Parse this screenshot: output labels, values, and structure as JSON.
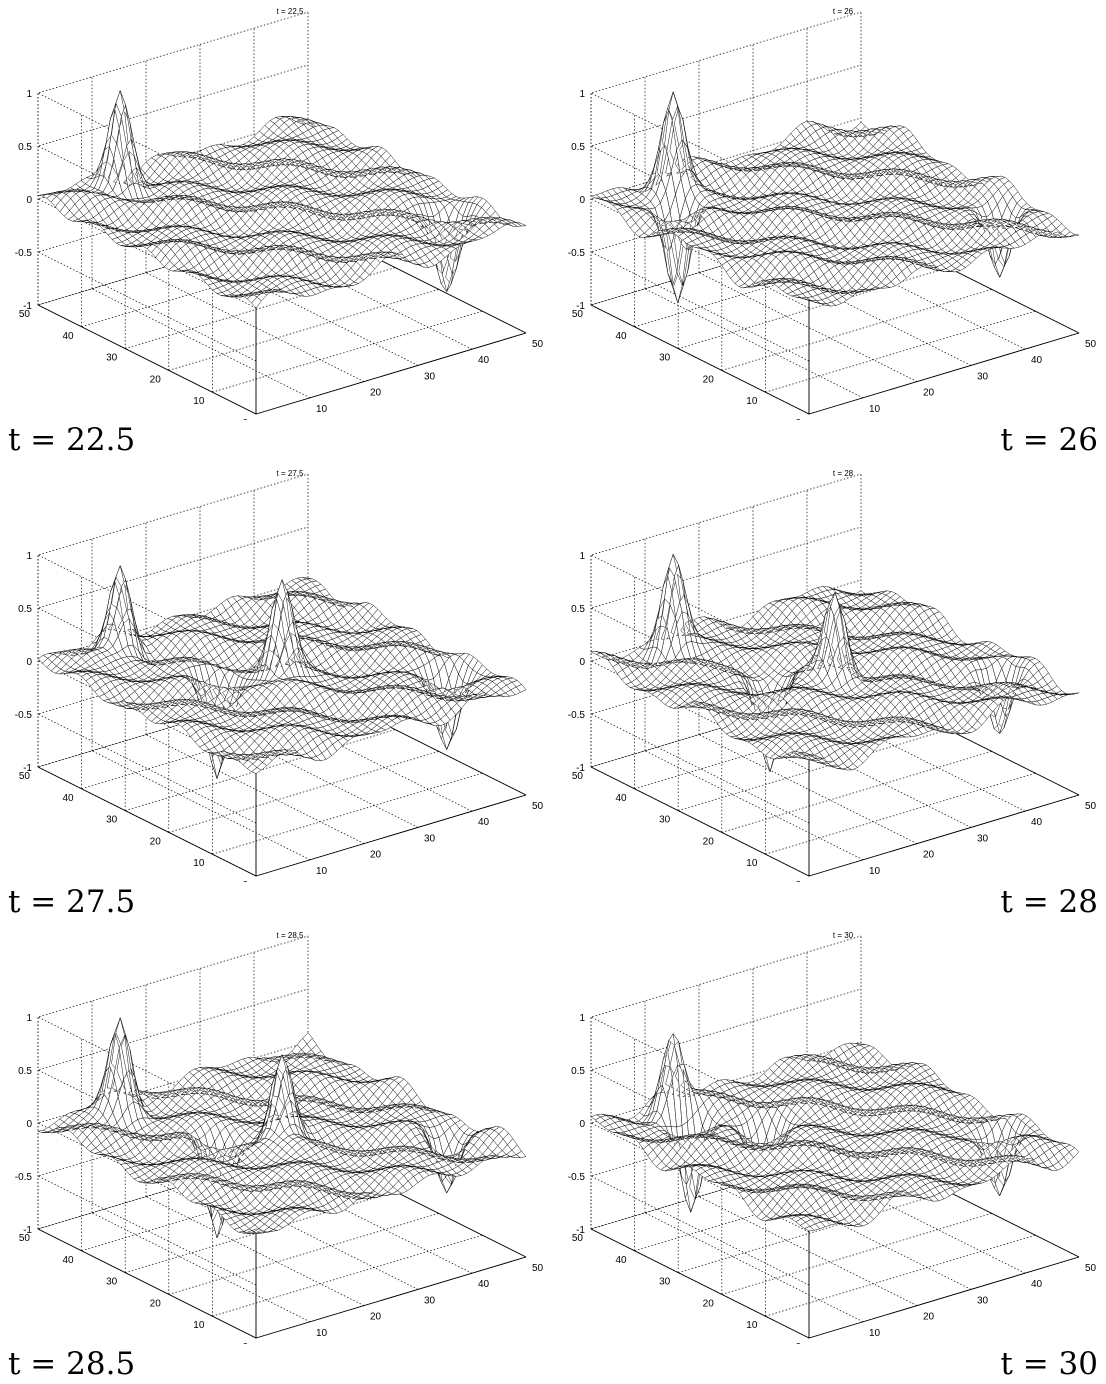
{
  "chart_data": [
    {
      "type": "surface",
      "title": "t = 22.5",
      "caption": "t = 22.5",
      "x_ticks": [
        "0",
        "10",
        "20",
        "30",
        "40",
        "50"
      ],
      "y_ticks": [
        "0",
        "10",
        "20",
        "30",
        "40",
        "50"
      ],
      "z_ticks": [
        "-1",
        "-0.5",
        "0",
        "0.5",
        "1"
      ],
      "xlim": [
        0,
        50
      ],
      "ylim": [
        0,
        50
      ],
      "zlim": [
        -1,
        1
      ],
      "grid": true,
      "peaks": [
        {
          "x": 12,
          "y": 46,
          "z": 0.95
        },
        {
          "x": 45,
          "y": 12,
          "z": -0.7
        }
      ]
    },
    {
      "type": "surface",
      "title": "t = 26",
      "caption": "t = 26",
      "x_ticks": [
        "0",
        "10",
        "20",
        "30",
        "40",
        "50"
      ],
      "y_ticks": [
        "0",
        "10",
        "20",
        "30",
        "40",
        "50"
      ],
      "z_ticks": [
        "-1",
        "-0.5",
        "0",
        "0.5",
        "1"
      ],
      "xlim": [
        0,
        50
      ],
      "ylim": [
        0,
        50
      ],
      "zlim": [
        -1,
        1
      ],
      "grid": true,
      "peaks": [
        {
          "x": 12,
          "y": 46,
          "z": 0.9
        },
        {
          "x": 8,
          "y": 40,
          "z": -0.95
        },
        {
          "x": 45,
          "y": 12,
          "z": -0.7
        }
      ]
    },
    {
      "type": "surface",
      "title": "t = 27.5",
      "caption": "t = 27.5",
      "x_ticks": [
        "0",
        "10",
        "20",
        "30",
        "40",
        "50"
      ],
      "y_ticks": [
        "0",
        "10",
        "20",
        "30",
        "40",
        "50"
      ],
      "z_ticks": [
        "-1",
        "-0.5",
        "0",
        "0.5",
        "1"
      ],
      "xlim": [
        0,
        50
      ],
      "ylim": [
        0,
        50
      ],
      "zlim": [
        -1,
        1
      ],
      "grid": true,
      "peaks": [
        {
          "x": 12,
          "y": 46,
          "z": 0.9
        },
        {
          "x": 25,
          "y": 25,
          "z": 0.85
        },
        {
          "x": 17,
          "y": 30,
          "z": -0.95
        },
        {
          "x": 45,
          "y": 12,
          "z": -0.65
        }
      ]
    },
    {
      "type": "surface",
      "title": "t = 28",
      "caption": "t = 28",
      "x_ticks": [
        "0",
        "10",
        "20",
        "30",
        "40",
        "50"
      ],
      "y_ticks": [
        "0",
        "10",
        "20",
        "30",
        "40",
        "50"
      ],
      "z_ticks": [
        "-1",
        "-0.5",
        "0",
        "0.5",
        "1"
      ],
      "xlim": [
        0,
        50
      ],
      "ylim": [
        0,
        50
      ],
      "zlim": [
        -1,
        1
      ],
      "grid": true,
      "peaks": [
        {
          "x": 12,
          "y": 46,
          "z": 0.9
        },
        {
          "x": 25,
          "y": 25,
          "z": 0.8
        },
        {
          "x": 17,
          "y": 30,
          "z": -0.95
        },
        {
          "x": 45,
          "y": 12,
          "z": -0.65
        }
      ]
    },
    {
      "type": "surface",
      "title": "t = 28.5",
      "caption": "t = 28.5",
      "x_ticks": [
        "0",
        "10",
        "20",
        "30",
        "40",
        "50"
      ],
      "y_ticks": [
        "0",
        "10",
        "20",
        "30",
        "40",
        "50"
      ],
      "z_ticks": [
        "-1",
        "-0.5",
        "0",
        "0.5",
        "1"
      ],
      "xlim": [
        0,
        50
      ],
      "ylim": [
        0,
        50
      ],
      "zlim": [
        -1,
        1
      ],
      "grid": true,
      "peaks": [
        {
          "x": 12,
          "y": 46,
          "z": 0.9
        },
        {
          "x": 25,
          "y": 25,
          "z": 0.85
        },
        {
          "x": 17,
          "y": 30,
          "z": -0.95
        },
        {
          "x": 45,
          "y": 12,
          "z": -0.6
        }
      ]
    },
    {
      "type": "surface",
      "title": "t = 30",
      "caption": "t = 30",
      "x_ticks": [
        "0",
        "10",
        "20",
        "30",
        "40",
        "50"
      ],
      "y_ticks": [
        "0",
        "10",
        "20",
        "30",
        "40",
        "50"
      ],
      "z_ticks": [
        "-1",
        "-0.5",
        "0",
        "0.5",
        "1"
      ],
      "xlim": [
        0,
        50
      ],
      "ylim": [
        0,
        50
      ],
      "zlim": [
        -1,
        1
      ],
      "grid": true,
      "peaks": [
        {
          "x": 12,
          "y": 46,
          "z": 0.85
        },
        {
          "x": 12,
          "y": 42,
          "z": -0.9
        },
        {
          "x": 20,
          "y": 35,
          "z": -0.7
        },
        {
          "x": 45,
          "y": 12,
          "z": -0.6
        }
      ]
    }
  ]
}
